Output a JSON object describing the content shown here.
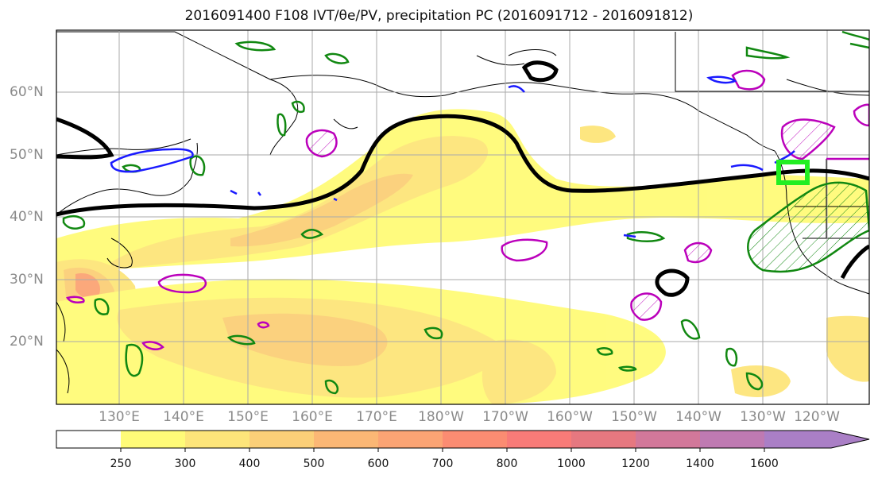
{
  "title": "2016091400 F108 IVT/θe/PV, precipitation PC (2016091712 - 2016091812)",
  "lat_labels": [
    "60°N",
    "50°N",
    "40°N",
    "30°N",
    "20°N"
  ],
  "lon_labels": [
    "130°E",
    "140°E",
    "150°E",
    "160°E",
    "170°E",
    "180°W",
    "170°W",
    "160°W",
    "150°W",
    "140°W",
    "130°W",
    "120°W"
  ],
  "colorbar": {
    "ticks": [
      "250",
      "300",
      "400",
      "500",
      "600",
      "700",
      "800",
      "1000",
      "1200",
      "1400",
      "1600"
    ],
    "colors": [
      "#ffffff",
      "#fffb78",
      "#fde57a",
      "#fbcf78",
      "#fbb775",
      "#fba474",
      "#fb8c72",
      "#f87b78",
      "#e67880",
      "#d2789a",
      "#aa7fc6"
    ]
  },
  "colors": {
    "black_contour": "#000000",
    "green_contour": "#118811",
    "magenta_contour": "#bb00bb",
    "blue_contour": "#1a1aff",
    "highlight_box": "#22ee22"
  }
}
